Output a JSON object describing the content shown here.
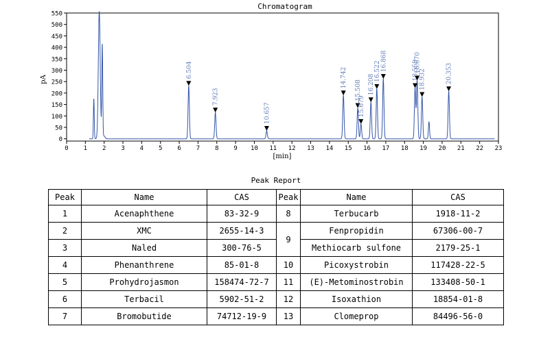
{
  "chart_data": {
    "type": "line",
    "title": "Chromatogram",
    "xlabel": "[min]",
    "ylabel": "pA",
    "xlim": [
      0,
      23
    ],
    "ylim": [
      -10,
      550
    ],
    "x_ticks": [
      0,
      1,
      2,
      3,
      4,
      5,
      6,
      7,
      8,
      9,
      10,
      11,
      12,
      13,
      14,
      15,
      16,
      17,
      18,
      19,
      20,
      21,
      22,
      23
    ],
    "y_ticks": [
      0,
      50,
      100,
      150,
      200,
      250,
      300,
      350,
      400,
      450,
      500,
      550
    ],
    "grid": false,
    "line_color": "#3355aa",
    "annotation_color": "#5f7bb5",
    "background_peaks": [
      {
        "x": 1.45,
        "y": 175,
        "w": 0.022
      },
      {
        "x": 1.74,
        "y": 560,
        "w": 0.05
      },
      {
        "x": 1.9,
        "y": 410,
        "w": 0.025
      },
      {
        "x": 2.0,
        "y": 12,
        "w": 0.05
      },
      {
        "x": 19.3,
        "y": 75,
        "w": 0.03
      }
    ],
    "peaks": [
      {
        "rt": "6.504",
        "x": 6.504,
        "y": 232
      },
      {
        "rt": "7.923",
        "x": 7.923,
        "y": 115
      },
      {
        "rt": "10.657",
        "x": 10.657,
        "y": 35
      },
      {
        "rt": "14.742",
        "x": 14.742,
        "y": 190
      },
      {
        "rt": "15.508",
        "x": 15.508,
        "y": 135
      },
      {
        "rt": "15.679",
        "x": 15.679,
        "y": 65
      },
      {
        "rt": "16.208",
        "x": 16.208,
        "y": 160
      },
      {
        "rt": "16.522",
        "x": 16.522,
        "y": 218
      },
      {
        "rt": "16.868",
        "x": 16.868,
        "y": 262
      },
      {
        "rt": "18.559",
        "x": 18.559,
        "y": 222
      },
      {
        "rt": "18.670",
        "x": 18.67,
        "y": 255
      },
      {
        "rt": "18.932",
        "x": 18.932,
        "y": 183
      },
      {
        "rt": "20.353",
        "x": 20.353,
        "y": 208
      }
    ]
  },
  "report": {
    "title": "Peak Report",
    "headers": [
      "Peak",
      "Name",
      "CAS",
      "Peak",
      "Name",
      "CAS"
    ],
    "rows": [
      {
        "peak_left": "1",
        "name_left": "Acenaphthene",
        "cas_left": "83-32-9",
        "peak_right": "8",
        "name_right": "Terbucarb",
        "cas_right": "1918-11-2"
      },
      {
        "peak_left": "2",
        "name_left": "XMC",
        "cas_left": "2655-14-3",
        "peak_right": "9",
        "name_right": "Fenpropidin",
        "cas_right": "67306-00-7"
      },
      {
        "peak_left": "3",
        "name_left": "Naled",
        "cas_left": "300-76-5",
        "peak_right": "",
        "name_right": "Methiocarb sulfone",
        "cas_right": "2179-25-1"
      },
      {
        "peak_left": "4",
        "name_left": "Phenanthrene",
        "cas_left": "85-01-8",
        "peak_right": "10",
        "name_right": "Picoxystrobin",
        "cas_right": "117428-22-5"
      },
      {
        "peak_left": "5",
        "name_left": "Prohydrojasmon",
        "cas_left": "158474-72-7",
        "peak_right": "11",
        "name_right": "(E)-Metominostrobin",
        "cas_right": "133408-50-1"
      },
      {
        "peak_left": "6",
        "name_left": "Terbacil",
        "cas_left": "5902-51-2",
        "peak_right": "12",
        "name_right": "Isoxathion",
        "cas_right": "18854-01-8"
      },
      {
        "peak_left": "7",
        "name_left": "Bromobutide",
        "cas_left": "74712-19-9",
        "peak_right": "13",
        "name_right": "Clomeprop",
        "cas_right": "84496-56-0"
      }
    ]
  }
}
